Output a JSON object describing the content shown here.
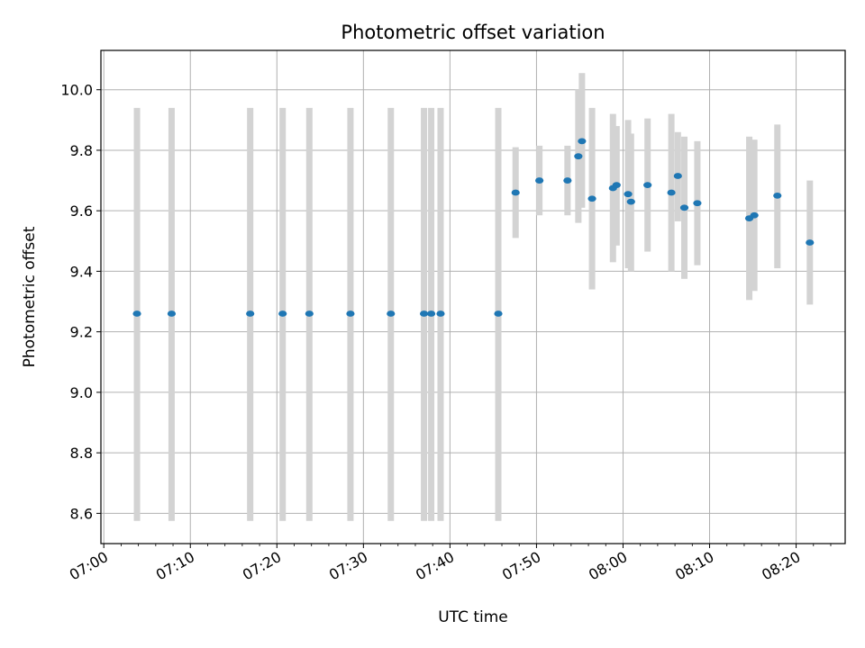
{
  "chart_data": {
    "type": "scatter",
    "title": "Photometric offset variation",
    "xlabel": "UTC time",
    "ylabel": "Photometric offset",
    "x_unit": "UTC time (HH:MM)",
    "xlim": [
      "06:59:40",
      "08:25:40"
    ],
    "ylim": [
      8.5,
      10.13
    ],
    "x_ticks": [
      "07:00",
      "07:10",
      "07:20",
      "07:30",
      "07:40",
      "07:50",
      "08:00",
      "08:10",
      "08:20"
    ],
    "y_ticks": [
      8.6,
      8.8,
      9.0,
      9.2,
      9.4,
      9.6,
      9.8,
      10.0
    ],
    "y_tick_labels": [
      "8.6",
      "8.8",
      "9.0",
      "9.2",
      "9.4",
      "9.6",
      "9.8",
      "10.0"
    ],
    "grid": true,
    "colors": {
      "point": "#1f77b4",
      "error_bar": "#d3d3d3",
      "grid": "#b0b0b0"
    },
    "points": [
      {
        "time": "07:03:50",
        "y": 9.26,
        "low": 8.575,
        "high": 9.94
      },
      {
        "time": "07:07:50",
        "y": 9.26,
        "low": 8.575,
        "high": 9.94
      },
      {
        "time": "07:16:55",
        "y": 9.26,
        "low": 8.575,
        "high": 9.94
      },
      {
        "time": "07:20:40",
        "y": 9.26,
        "low": 8.575,
        "high": 9.94
      },
      {
        "time": "07:23:45",
        "y": 9.26,
        "low": 8.575,
        "high": 9.94
      },
      {
        "time": "07:28:30",
        "y": 9.26,
        "low": 8.575,
        "high": 9.94
      },
      {
        "time": "07:33:10",
        "y": 9.26,
        "low": 8.575,
        "high": 9.94
      },
      {
        "time": "07:37:00",
        "y": 9.26,
        "low": 8.575,
        "high": 9.94
      },
      {
        "time": "07:37:50",
        "y": 9.26,
        "low": 8.575,
        "high": 9.94
      },
      {
        "time": "07:38:55",
        "y": 9.26,
        "low": 8.575,
        "high": 9.94
      },
      {
        "time": "07:45:35",
        "y": 9.26,
        "low": 8.575,
        "high": 9.94
      },
      {
        "time": "07:47:35",
        "y": 9.66,
        "low": 9.51,
        "high": 9.81
      },
      {
        "time": "07:50:20",
        "y": 9.7,
        "low": 9.585,
        "high": 9.815
      },
      {
        "time": "07:53:35",
        "y": 9.7,
        "low": 9.585,
        "high": 9.815
      },
      {
        "time": "07:54:50",
        "y": 9.78,
        "low": 9.56,
        "high": 10.0
      },
      {
        "time": "07:55:15",
        "y": 9.83,
        "low": 9.61,
        "high": 10.055
      },
      {
        "time": "07:56:25",
        "y": 9.64,
        "low": 9.34,
        "high": 9.94
      },
      {
        "time": "07:58:50",
        "y": 9.675,
        "low": 9.43,
        "high": 9.92
      },
      {
        "time": "07:59:15",
        "y": 9.685,
        "low": 9.485,
        "high": 9.88
      },
      {
        "time": "08:00:35",
        "y": 9.655,
        "low": 9.41,
        "high": 9.9
      },
      {
        "time": "08:00:55",
        "y": 9.63,
        "low": 9.4,
        "high": 9.855
      },
      {
        "time": "08:02:50",
        "y": 9.685,
        "low": 9.465,
        "high": 9.905
      },
      {
        "time": "08:05:35",
        "y": 9.66,
        "low": 9.4,
        "high": 9.92
      },
      {
        "time": "08:06:20",
        "y": 9.715,
        "low": 9.565,
        "high": 9.86
      },
      {
        "time": "08:07:05",
        "y": 9.61,
        "low": 9.375,
        "high": 9.845
      },
      {
        "time": "08:08:35",
        "y": 9.625,
        "low": 9.42,
        "high": 9.83
      },
      {
        "time": "08:14:35",
        "y": 9.575,
        "low": 9.305,
        "high": 9.845
      },
      {
        "time": "08:15:10",
        "y": 9.585,
        "low": 9.335,
        "high": 9.835
      },
      {
        "time": "08:17:50",
        "y": 9.65,
        "low": 9.41,
        "high": 9.885
      },
      {
        "time": "08:21:35",
        "y": 9.495,
        "low": 9.29,
        "high": 9.7
      }
    ]
  }
}
